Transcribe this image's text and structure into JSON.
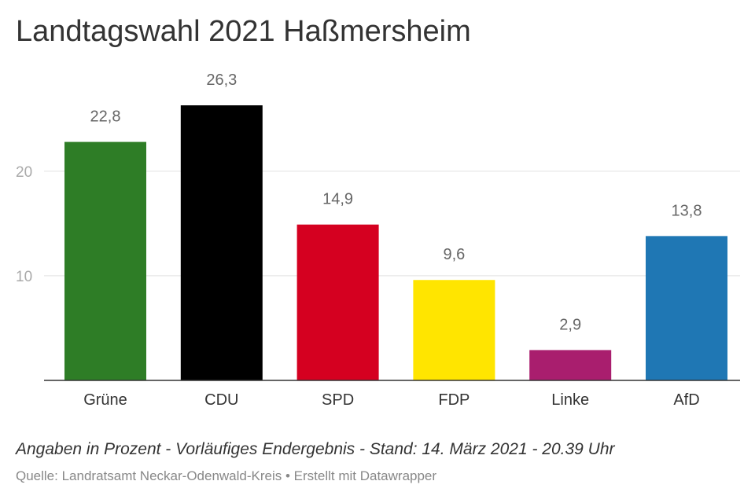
{
  "chart_data": {
    "type": "bar",
    "title": "Landtagswahl 2021 Haßmersheim",
    "subtitle": "Angaben in Prozent - Vorläufiges Endergebnis - Stand: 14. März 2021 - 20.39 Uhr",
    "source": "Quelle: Landratsamt Neckar-Odenwald-Kreis • Erstellt mit Datawrapper",
    "categories": [
      "Grüne",
      "CDU",
      "SPD",
      "FDP",
      "Linke",
      "AfD"
    ],
    "values": [
      22.8,
      26.3,
      14.9,
      9.6,
      2.9,
      13.8
    ],
    "value_labels": [
      "22,8",
      "26,3",
      "14,9",
      "9,6",
      "2,9",
      "13,8"
    ],
    "colors": [
      "#2e7d26",
      "#000000",
      "#d50020",
      "#ffe500",
      "#a91e6e",
      "#1f77b4"
    ],
    "yticks": [
      10,
      20
    ],
    "ylim": [
      0,
      26.3
    ],
    "grid": true,
    "xlabel": "",
    "ylabel": ""
  }
}
